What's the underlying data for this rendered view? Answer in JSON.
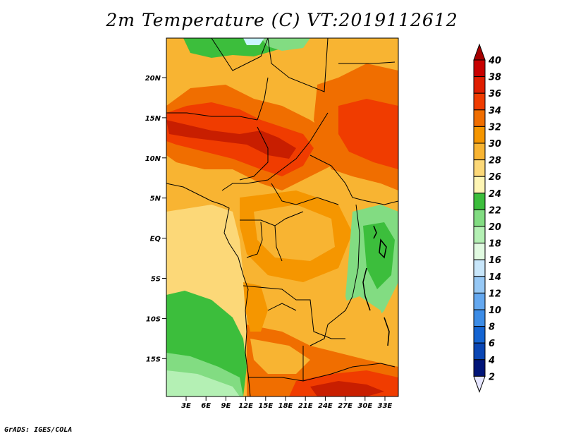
{
  "title": "2m Temperature (C) VT:2019112612",
  "credit": "GrADS: IGES/COLA",
  "lat_ticks": [
    "20N",
    "15N",
    "10N",
    "5N",
    "EQ",
    "5S",
    "10S",
    "15S"
  ],
  "lon_ticks": [
    "3E",
    "6E",
    "9E",
    "12E",
    "15E",
    "18E",
    "21E",
    "24E",
    "27E",
    "30E",
    "33E"
  ],
  "colorbar": {
    "levels": [
      "40",
      "38",
      "36",
      "34",
      "32",
      "30",
      "28",
      "26",
      "24",
      "22",
      "20",
      "18",
      "16",
      "14",
      "12",
      "10",
      "8",
      "6",
      "4",
      "2"
    ],
    "colors_top_to_bottom": [
      "#a50000",
      "#c80000",
      "#e01e00",
      "#f03c00",
      "#f06e00",
      "#f59600",
      "#f8b432",
      "#fcd878",
      "#fef5b4",
      "#3cbe3c",
      "#82dc82",
      "#b4f0b4",
      "#e1fae1",
      "#c8e6fa",
      "#96c8f5",
      "#64a8f0",
      "#3c8ce6",
      "#1464d2",
      "#0a46b4",
      "#001478"
    ],
    "below_min_color": "#e6e6ff"
  }
}
